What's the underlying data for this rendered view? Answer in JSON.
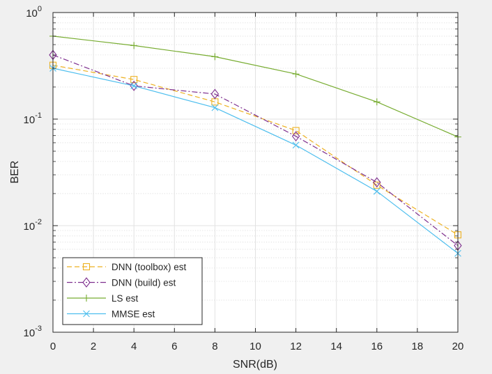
{
  "chart_data": {
    "type": "line",
    "title": "",
    "xlabel": "SNR(dB)",
    "ylabel": "BER",
    "xlim": [
      0,
      20
    ],
    "ylim": [
      0.001,
      1
    ],
    "yscale": "log",
    "grid": true,
    "minor_grid": true,
    "legend_position": "bottom-left",
    "x_ticks": [
      {
        "value": 0,
        "label": "0"
      },
      {
        "value": 2,
        "label": "2"
      },
      {
        "value": 4,
        "label": "4"
      },
      {
        "value": 6,
        "label": "6"
      },
      {
        "value": 8,
        "label": "8"
      },
      {
        "value": 10,
        "label": "10"
      },
      {
        "value": 12,
        "label": "12"
      },
      {
        "value": 14,
        "label": "14"
      },
      {
        "value": 16,
        "label": "16"
      },
      {
        "value": 18,
        "label": "18"
      },
      {
        "value": 20,
        "label": "20"
      }
    ],
    "y_ticks": [
      {
        "value": 0.001,
        "base": "10",
        "exp": "-3"
      },
      {
        "value": 0.01,
        "base": "10",
        "exp": "-2"
      },
      {
        "value": 0.1,
        "base": "10",
        "exp": "-1"
      },
      {
        "value": 1,
        "base": "10",
        "exp": "0"
      }
    ],
    "x": [
      0,
      4,
      8,
      12,
      16,
      20
    ],
    "series": [
      {
        "name": "DNN (toolbox) est",
        "color": "#EDB120",
        "dash": "dashed",
        "marker": "square",
        "values": [
          0.32,
          0.235,
          0.145,
          0.078,
          0.024,
          0.0082
        ]
      },
      {
        "name": "DNN (build) est",
        "color": "#7E2F8E",
        "dash": "dashdot",
        "marker": "diamond",
        "values": [
          0.4,
          0.205,
          0.172,
          0.069,
          0.0255,
          0.0065
        ]
      },
      {
        "name": "LS est",
        "color": "#77AC30",
        "dash": "solid",
        "marker": "plus",
        "values": [
          0.6,
          0.49,
          0.385,
          0.265,
          0.145,
          0.068
        ]
      },
      {
        "name": "MMSE est",
        "color": "#4DBEEE",
        "dash": "solid",
        "marker": "x",
        "values": [
          0.3,
          0.205,
          0.128,
          0.057,
          0.021,
          0.0055
        ]
      }
    ]
  }
}
